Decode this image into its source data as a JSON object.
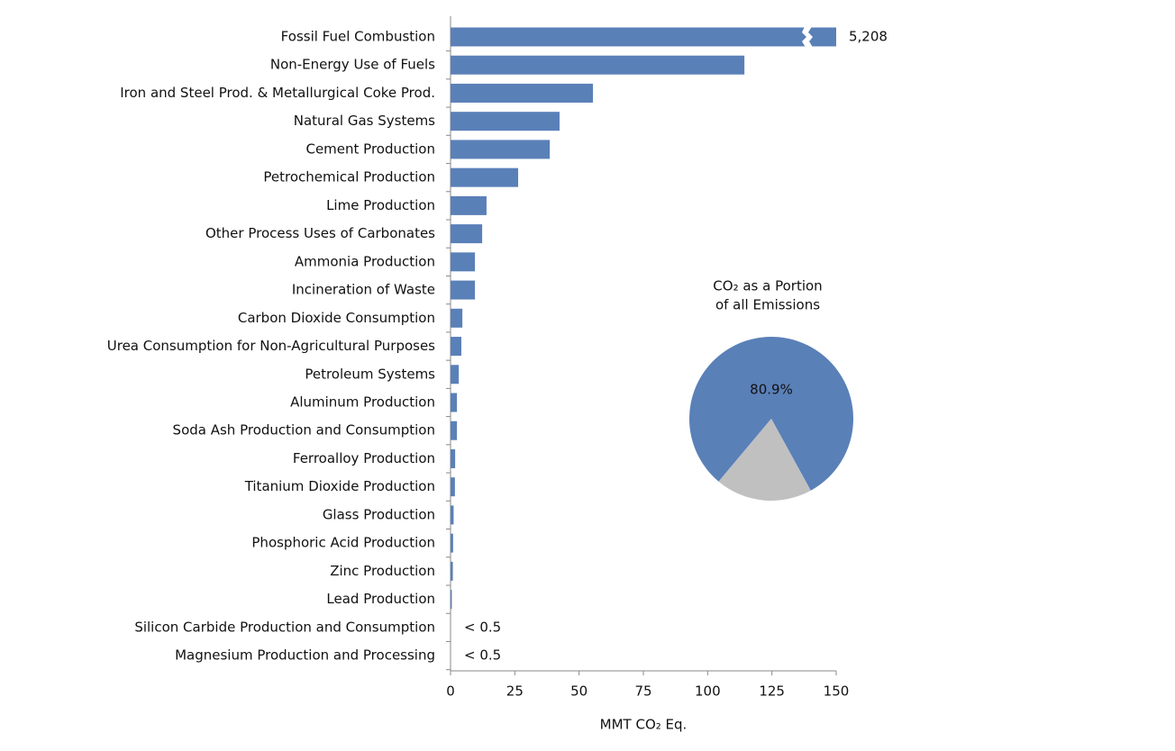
{
  "chart_data": [
    {
      "type": "bar",
      "orientation": "horizontal",
      "xlabel": "MMT CO₂ Eq.",
      "categories": [
        "Fossil Fuel Combustion",
        "Non-Energy Use of Fuels",
        "Iron and Steel Prod. & Metallurgical Coke Prod.",
        "Natural Gas Systems",
        "Cement Production",
        "Petrochemical Production",
        "Lime Production",
        "Other Process Uses of Carbonates",
        "Ammonia Production",
        "Incineration of Waste",
        "Carbon Dioxide Consumption",
        "Urea Consumption for Non-Agricultural Purposes",
        "Petroleum Systems",
        "Aluminum Production",
        "Soda Ash Production and Consumption",
        "Ferroalloy Production",
        "Titanium Dioxide Production",
        "Glass Production",
        "Phosphoric Acid Production",
        "Zinc Production",
        "Lead Production",
        "Silicon Carbide Production and Consumption",
        "Magnesium Production and Processing"
      ],
      "values": [
        5208,
        114.3,
        55.4,
        42.4,
        38.6,
        26.3,
        14,
        12.3,
        9.5,
        9.5,
        4.6,
        4.2,
        3.2,
        2.5,
        2.5,
        1.8,
        1.7,
        1.2,
        1.0,
        0.9,
        0.5,
        null,
        null
      ],
      "value_labels": [
        "5,208",
        null,
        null,
        null,
        null,
        null,
        null,
        null,
        null,
        null,
        null,
        null,
        null,
        null,
        null,
        null,
        null,
        null,
        null,
        null,
        null,
        "< 0.5",
        "< 0.5"
      ],
      "color": "#5a80b8",
      "xlim": [
        0,
        150
      ],
      "xticks": [
        0,
        25,
        50,
        75,
        100,
        125,
        150
      ]
    },
    {
      "type": "pie",
      "title": [
        "CO₂ as a Portion",
        "of all Emissions"
      ],
      "values": [
        80.9,
        19.1
      ],
      "value_labels": [
        "80.9%",
        null
      ],
      "colors": [
        "#5a80b8",
        "#c0c0c0"
      ]
    }
  ]
}
